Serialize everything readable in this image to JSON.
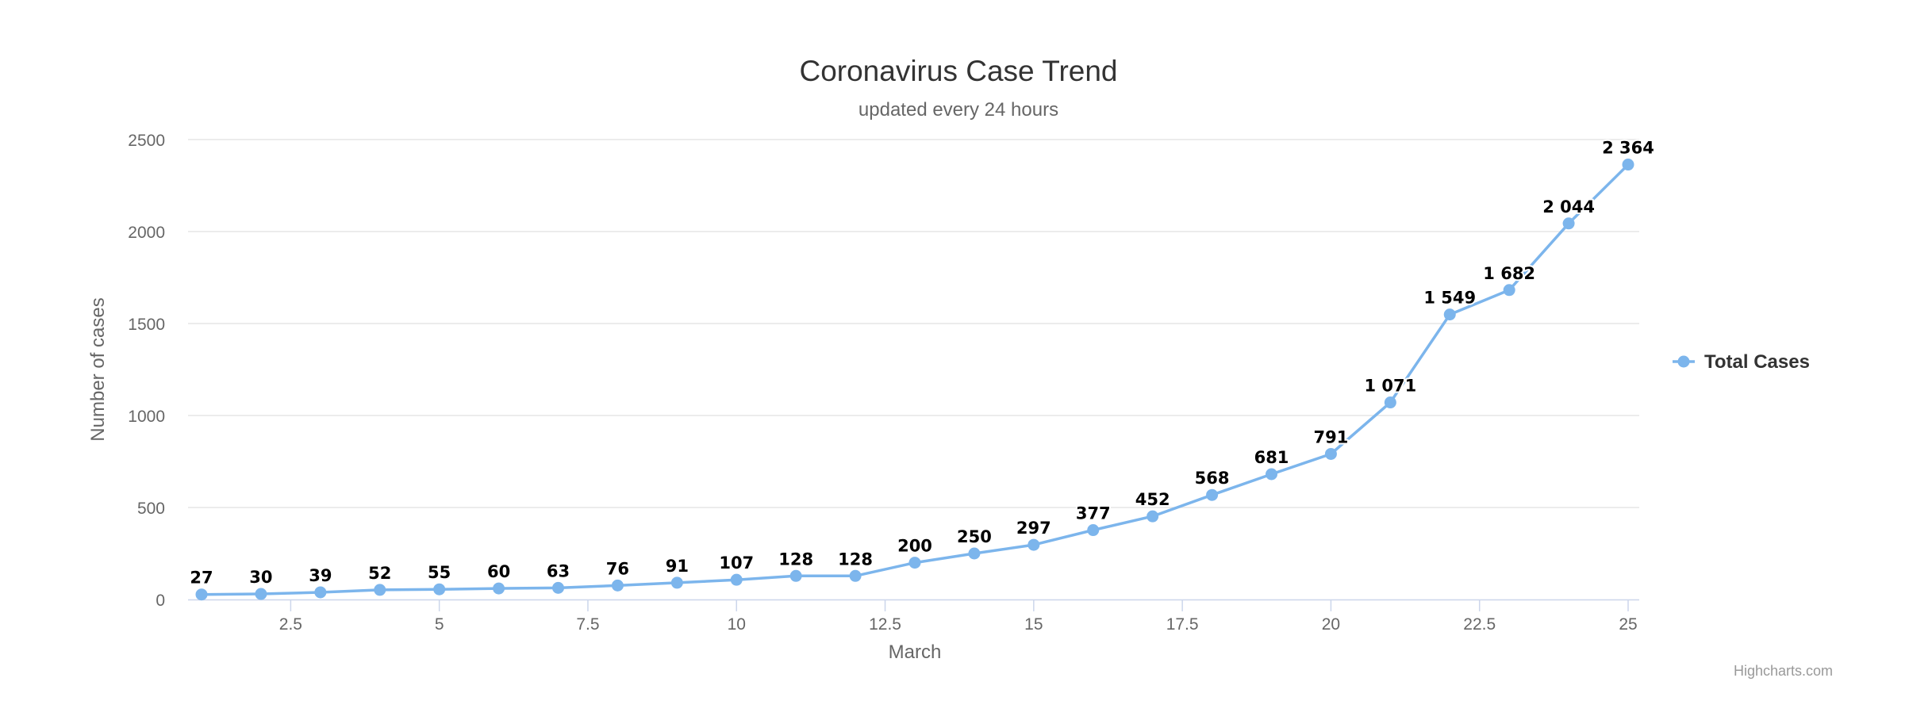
{
  "chart_data": {
    "type": "line",
    "title": "Coronavirus Case Trend",
    "subtitle": "updated every 24 hours",
    "xlabel": "March",
    "ylabel": "Number of cases",
    "xlim": [
      1,
      25
    ],
    "ylim": [
      0,
      2500
    ],
    "x_ticks": [
      2.5,
      5,
      7.5,
      10,
      12.5,
      15,
      17.5,
      20,
      22.5,
      25
    ],
    "y_ticks": [
      0,
      500,
      1000,
      1500,
      2000,
      2500
    ],
    "grid": true,
    "legend_position": "right",
    "series": [
      {
        "name": "Total Cases",
        "color": "#7cb5ec",
        "x": [
          1,
          2,
          3,
          4,
          5,
          6,
          7,
          8,
          9,
          10,
          11,
          12,
          13,
          14,
          15,
          16,
          17,
          18,
          19,
          20,
          21,
          22,
          23,
          24,
          25
        ],
        "values": [
          27,
          30,
          39,
          52,
          55,
          60,
          63,
          76,
          91,
          107,
          128,
          128,
          200,
          250,
          297,
          377,
          452,
          568,
          681,
          791,
          1071,
          1549,
          1682,
          2044,
          2364
        ],
        "labels": [
          "27",
          "30",
          "39",
          "52",
          "55",
          "60",
          "63",
          "76",
          "91",
          "107",
          "128",
          "128",
          "200",
          "250",
          "297",
          "377",
          "452",
          "568",
          "681",
          "791",
          "1 071",
          "1 549",
          "1 682",
          "2 044",
          "2 364"
        ]
      }
    ]
  },
  "credits": "Highcharts.com"
}
